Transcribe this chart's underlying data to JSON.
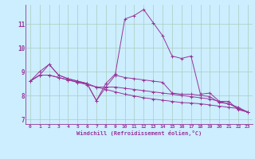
{
  "xlabel": "Windchill (Refroidissement éolien,°C)",
  "bg_color": "#cceeff",
  "grid_color": "#aaccbb",
  "line_color": "#993399",
  "xlim": [
    -0.5,
    23.5
  ],
  "ylim": [
    6.8,
    11.8
  ],
  "xticks": [
    0,
    1,
    2,
    3,
    4,
    5,
    6,
    7,
    8,
    9,
    10,
    11,
    12,
    13,
    14,
    15,
    16,
    17,
    18,
    19,
    20,
    21,
    22,
    23
  ],
  "yticks": [
    7,
    8,
    9,
    10,
    11
  ],
  "series": [
    [
      8.6,
      9.0,
      9.3,
      8.85,
      8.7,
      8.6,
      8.5,
      7.78,
      8.5,
      8.9,
      11.2,
      11.35,
      11.6,
      11.05,
      10.5,
      9.65,
      9.55,
      9.65,
      8.05,
      8.1,
      7.75,
      7.75,
      7.4,
      7.3
    ],
    [
      8.6,
      8.85,
      8.85,
      8.75,
      8.65,
      8.55,
      8.5,
      8.35,
      8.25,
      8.15,
      8.05,
      7.98,
      7.9,
      7.85,
      7.8,
      7.75,
      7.7,
      7.68,
      7.65,
      7.6,
      7.55,
      7.5,
      7.45,
      7.3
    ],
    [
      8.6,
      8.85,
      9.3,
      8.85,
      8.7,
      8.6,
      8.5,
      7.78,
      8.35,
      8.85,
      8.75,
      8.7,
      8.65,
      8.6,
      8.55,
      8.1,
      8.05,
      8.05,
      8.0,
      7.95,
      7.7,
      7.65,
      7.45,
      7.3
    ],
    [
      8.6,
      8.85,
      8.85,
      8.75,
      8.65,
      8.55,
      8.45,
      8.35,
      8.35,
      8.35,
      8.3,
      8.25,
      8.2,
      8.15,
      8.1,
      8.05,
      8.0,
      7.95,
      7.9,
      7.85,
      7.75,
      7.65,
      7.5,
      7.3
    ]
  ],
  "fig_width": 3.2,
  "fig_height": 2.0,
  "dpi": 100
}
